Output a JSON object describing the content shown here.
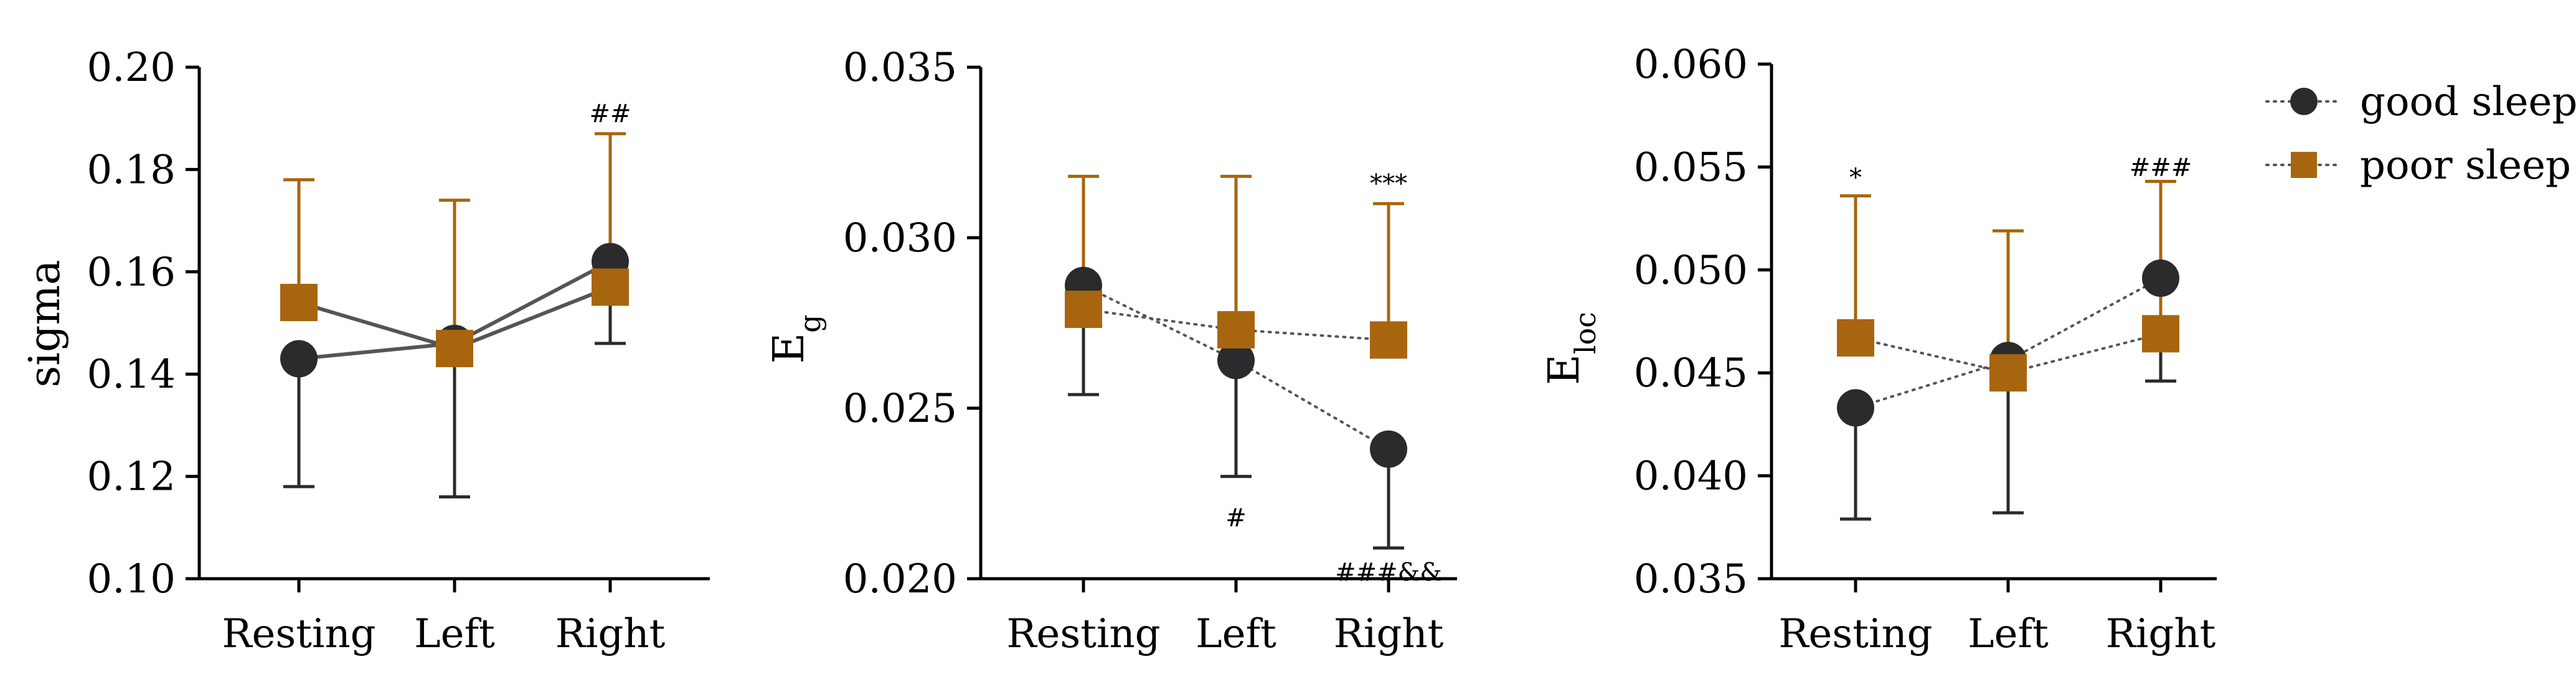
{
  "chart_data": [
    {
      "type": "line",
      "title": "",
      "xlabel": "",
      "ylabel": "sigma",
      "categories": [
        "Resting",
        "Left",
        "Right"
      ],
      "ylim": [
        0.1,
        0.2
      ],
      "yticks": [
        "0.10",
        "0.12",
        "0.14",
        "0.16",
        "0.18",
        "0.20"
      ],
      "line_style": "solid",
      "series": [
        {
          "name": "good sleep",
          "values": [
            0.143,
            0.146,
            0.162
          ],
          "err_low": [
            0.118,
            0.116,
            0.146
          ],
          "err_high": [
            null,
            null,
            null
          ]
        },
        {
          "name": "poor sleep",
          "values": [
            0.154,
            0.145,
            0.157
          ],
          "err_low": [
            null,
            null,
            null
          ],
          "err_high": [
            0.178,
            0.174,
            0.187
          ]
        }
      ],
      "annotations": [
        {
          "category": "Right",
          "text": "##",
          "value": 0.191
        }
      ]
    },
    {
      "type": "line",
      "title": "",
      "xlabel": "",
      "ylabel": "E",
      "ylabel_sub": "g",
      "categories": [
        "Resting",
        "Left",
        "Right"
      ],
      "ylim": [
        0.02,
        0.035
      ],
      "yticks": [
        "0.020",
        "0.025",
        "0.030",
        "0.035"
      ],
      "line_style": "dotted",
      "series": [
        {
          "name": "good sleep",
          "values": [
            0.0286,
            0.0264,
            0.0238
          ],
          "err_low": [
            0.0254,
            0.023,
            0.0209
          ],
          "err_high": [
            null,
            null,
            null
          ]
        },
        {
          "name": "poor sleep",
          "values": [
            0.0279,
            0.0273,
            0.027
          ],
          "err_low": [
            null,
            null,
            null
          ],
          "err_high": [
            0.0318,
            0.0318,
            0.031
          ]
        }
      ],
      "annotations": [
        {
          "category": "Right",
          "text": "***",
          "value": 0.0316
        },
        {
          "category": "Left",
          "text": "#",
          "value": 0.0218
        },
        {
          "category": "Right",
          "text": "###&&",
          "value": 0.0202
        }
      ]
    },
    {
      "type": "line",
      "title": "",
      "xlabel": "",
      "ylabel": "E",
      "ylabel_sub": "loc",
      "categories": [
        "Resting",
        "Left",
        "Right"
      ],
      "ylim": [
        0.035,
        0.06
      ],
      "yticks": [
        "0.035",
        "0.040",
        "0.045",
        "0.050",
        "0.055",
        "0.060"
      ],
      "line_style": "dotted",
      "series": [
        {
          "name": "good sleep",
          "values": [
            0.0433,
            0.0456,
            0.0496
          ],
          "err_low": [
            0.0379,
            0.0382,
            0.0446
          ],
          "err_high": [
            null,
            null,
            null
          ]
        },
        {
          "name": "poor sleep",
          "values": [
            0.0467,
            0.045,
            0.0469
          ],
          "err_low": [
            null,
            null,
            null
          ],
          "err_high": [
            0.0536,
            0.0519,
            0.0543
          ]
        }
      ],
      "annotations": [
        {
          "category": "Resting",
          "text": "*",
          "value": 0.0545
        },
        {
          "category": "Right",
          "text": "###",
          "value": 0.055
        }
      ]
    }
  ],
  "legend": {
    "placement": "top-right",
    "entries": [
      {
        "name": "good sleep",
        "marker": "circle",
        "color": "#2b2b2d"
      },
      {
        "name": "poor sleep",
        "marker": "square",
        "color": "#a8650f"
      }
    ]
  },
  "colors": {
    "good": "#2b2b2d",
    "poor": "#a8650f",
    "connector": "#555555",
    "axis": "#000000"
  }
}
